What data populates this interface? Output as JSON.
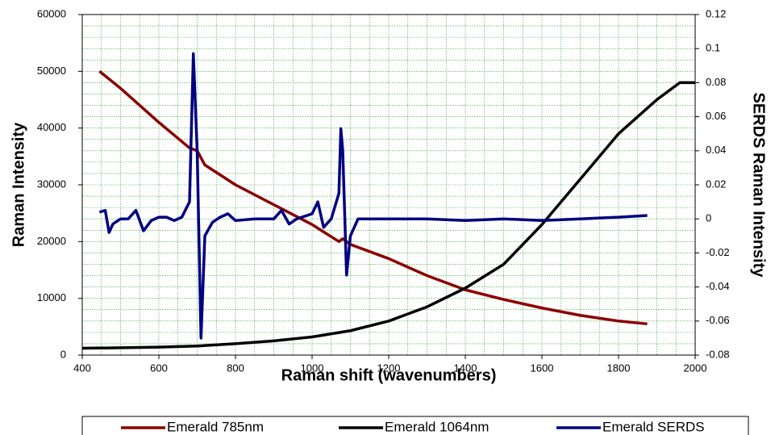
{
  "chart_data": {
    "type": "line",
    "xlabel": "Raman shift (wavenumbers)",
    "ylabel": "Raman Intensity",
    "y2label": "SERDS Raman Intensity",
    "xlim": [
      400,
      2000
    ],
    "xticks": [
      400,
      600,
      800,
      1000,
      1200,
      1400,
      1600,
      1800,
      2000
    ],
    "ylim": [
      0,
      60000
    ],
    "yticks": [
      0,
      10000,
      20000,
      30000,
      40000,
      50000,
      60000
    ],
    "y2lim": [
      -0.08,
      0.12
    ],
    "y2ticks": [
      -0.08,
      -0.06,
      -0.04,
      -0.02,
      0,
      0.02,
      0.04,
      0.06,
      0.08,
      0.1,
      0.12
    ],
    "grid": true,
    "legend": "bottom",
    "series": [
      {
        "name": "Emerald 785nm",
        "color": "#8b0000",
        "x": [
          445,
          500,
          600,
          680,
          700,
          720,
          800,
          900,
          1000,
          1070,
          1080,
          1100,
          1200,
          1300,
          1400,
          1500,
          1600,
          1700,
          1800,
          1875
        ],
        "values": [
          50000,
          47000,
          41000,
          36500,
          36000,
          33500,
          30000,
          26500,
          23000,
          20000,
          20500,
          19500,
          17000,
          14000,
          11500,
          9800,
          8300,
          7000,
          6000,
          5500
        ]
      },
      {
        "name": "Emerald 1064nm",
        "color": "#000000",
        "x": [
          400,
          600,
          700,
          800,
          900,
          1000,
          1100,
          1200,
          1300,
          1400,
          1500,
          1600,
          1700,
          1800,
          1900,
          1960,
          2000
        ],
        "values": [
          1200,
          1400,
          1600,
          2000,
          2500,
          3200,
          4300,
          6000,
          8500,
          11800,
          16000,
          23000,
          31000,
          39000,
          45000,
          48000,
          48000
        ]
      },
      {
        "name": "Emerald SERDS",
        "color": "#000080",
        "axis": "y2",
        "x": [
          445,
          460,
          470,
          480,
          500,
          520,
          540,
          560,
          580,
          600,
          620,
          640,
          660,
          680,
          690,
          700,
          710,
          720,
          740,
          760,
          780,
          800,
          850,
          900,
          920,
          940,
          960,
          1000,
          1015,
          1030,
          1050,
          1070,
          1075,
          1080,
          1090,
          1100,
          1120,
          1200,
          1300,
          1400,
          1500,
          1600,
          1700,
          1800,
          1875
        ],
        "values": [
          0.004,
          0.005,
          -0.008,
          -0.003,
          0,
          0,
          0.005,
          -0.007,
          -0.001,
          0.001,
          0.001,
          -0.001,
          0.001,
          0.01,
          0.097,
          0.04,
          -0.07,
          -0.01,
          -0.002,
          0.001,
          0.003,
          -0.001,
          0,
          0,
          0.005,
          -0.003,
          0,
          0.003,
          0.01,
          -0.005,
          0,
          0.015,
          0.053,
          0.04,
          -0.033,
          -0.01,
          0,
          0,
          0,
          -0.001,
          0,
          -0.001,
          0,
          0.001,
          0.002
        ]
      }
    ]
  }
}
